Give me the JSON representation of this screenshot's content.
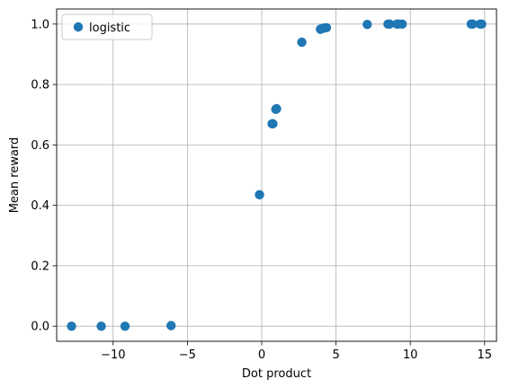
{
  "chart_data": {
    "type": "scatter",
    "title": "",
    "xlabel": "Dot product",
    "ylabel": "Mean reward",
    "xlim": [
      -13.8,
      15.8
    ],
    "ylim": [
      -0.05,
      1.05
    ],
    "xticks": [
      -10,
      -5,
      0,
      5,
      10,
      15
    ],
    "xtick_labels": [
      "−10",
      "−5",
      "0",
      "5",
      "10",
      "15"
    ],
    "yticks": [
      0.0,
      0.2,
      0.4,
      0.6,
      0.8,
      1.0
    ],
    "ytick_labels": [
      "0.0",
      "0.2",
      "0.4",
      "0.6",
      "0.8",
      "1.0"
    ],
    "grid": true,
    "legend_position": "top-left",
    "series": [
      {
        "name": "logistic",
        "color": "#1f77b4",
        "points": [
          {
            "x": -12.8,
            "y": 0.0
          },
          {
            "x": -10.8,
            "y": 0.0
          },
          {
            "x": -9.2,
            "y": 0.0
          },
          {
            "x": -6.1,
            "y": 0.002
          },
          {
            "x": -0.15,
            "y": 0.435
          },
          {
            "x": 0.7,
            "y": 0.67
          },
          {
            "x": 0.75,
            "y": 0.67
          },
          {
            "x": 0.95,
            "y": 0.718
          },
          {
            "x": 1.0,
            "y": 0.72
          },
          {
            "x": 2.7,
            "y": 0.94
          },
          {
            "x": 3.95,
            "y": 0.983
          },
          {
            "x": 4.05,
            "y": 0.985
          },
          {
            "x": 4.2,
            "y": 0.987
          },
          {
            "x": 4.35,
            "y": 0.988
          },
          {
            "x": 7.1,
            "y": 0.999
          },
          {
            "x": 8.5,
            "y": 1.0
          },
          {
            "x": 8.6,
            "y": 1.0
          },
          {
            "x": 9.1,
            "y": 1.0
          },
          {
            "x": 9.2,
            "y": 1.0
          },
          {
            "x": 9.45,
            "y": 1.0
          },
          {
            "x": 14.1,
            "y": 1.0
          },
          {
            "x": 14.2,
            "y": 1.0
          },
          {
            "x": 14.7,
            "y": 1.0
          },
          {
            "x": 14.8,
            "y": 1.0
          }
        ]
      }
    ]
  }
}
